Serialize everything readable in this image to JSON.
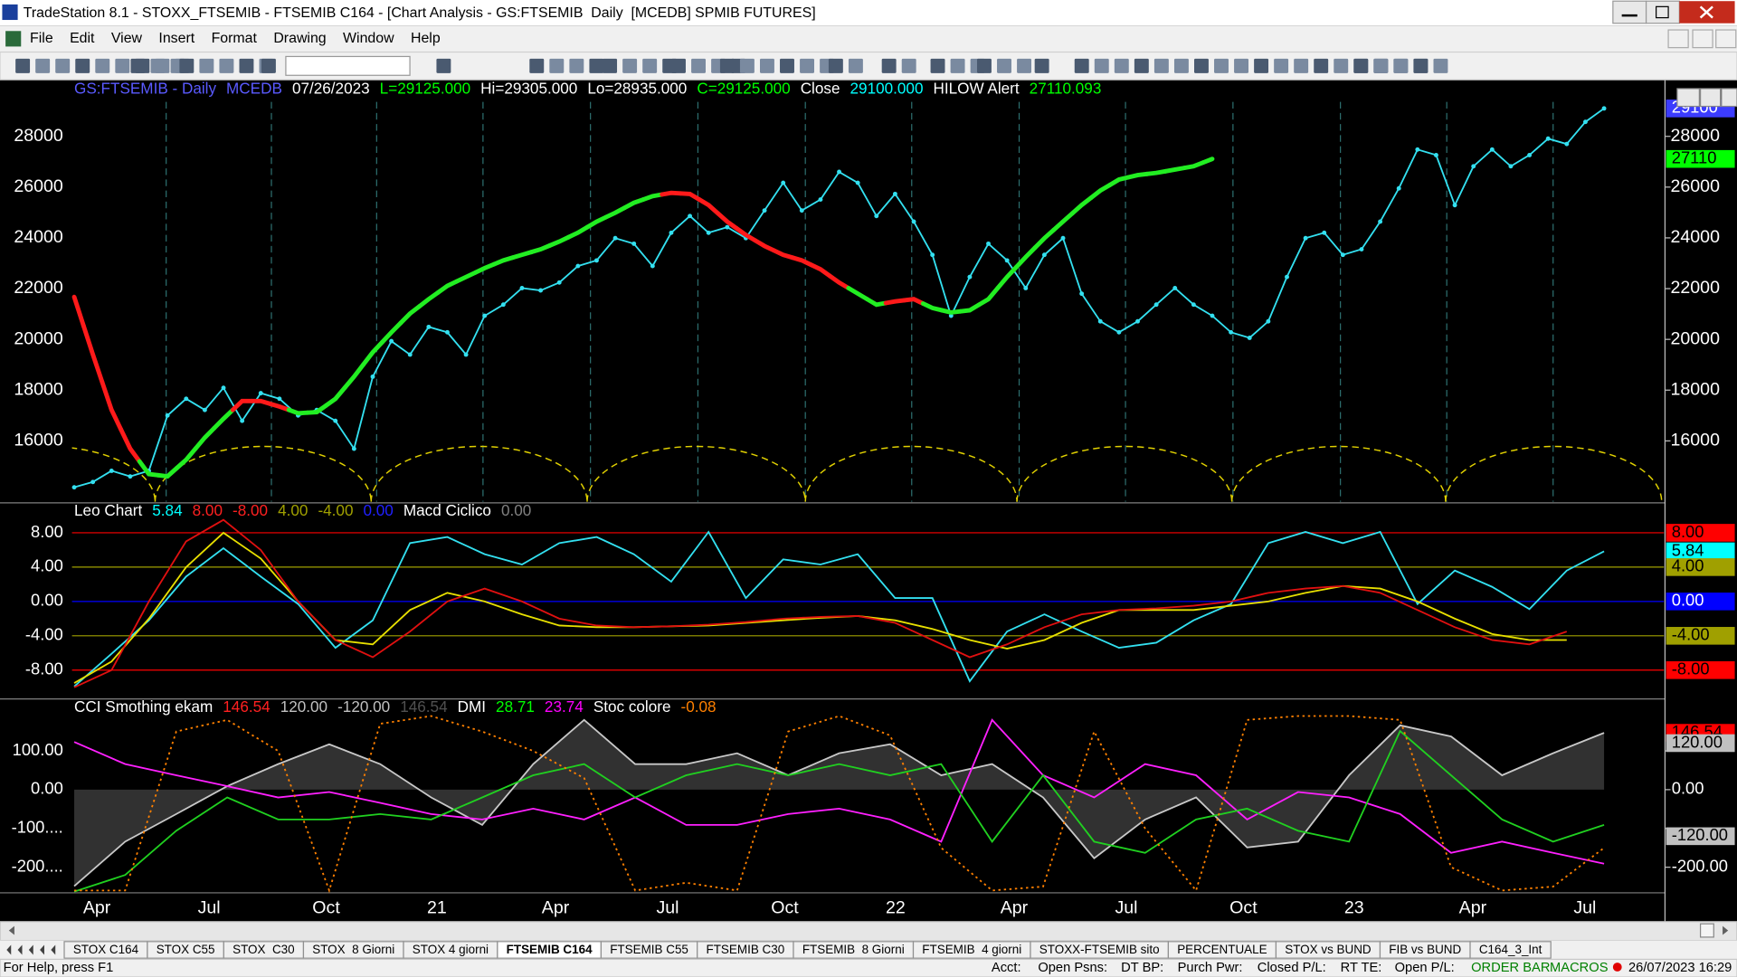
{
  "window": {
    "title": "TradeStation 8.1 - STOXX_FTSEMIB - FTSEMIB C164 - [Chart Analysis - GS:FTSEMIB  Daily  [MCEDB] SPMIB FUTURES]",
    "menu": [
      "File",
      "Edit",
      "View",
      "Insert",
      "Format",
      "Drawing",
      "Window",
      "Help"
    ],
    "tabs": [
      "STOX C164",
      "STOX C55",
      "STOX  C30",
      "STOX  8 Giorni",
      "STOX 4 giorni",
      "FTSEMIB C164",
      "FTSEMIB C55",
      "FTSEMIB C30",
      "FTSEMIB  8 Giorni",
      "FTSEMIB  4 giorni",
      "STOXX-FTSEMIB sito",
      "PERCENTUALE",
      "STOX vs BUND",
      "FIB vs BUND",
      "C164_3_Int"
    ],
    "active_tab": 5,
    "status_help": "For Help, press F1",
    "status_fields": [
      "Acct:",
      "Open Psns:",
      "DT BP:",
      "Purch Pwr:",
      "Closed P/L:",
      "RT TE:",
      "Open P/L:"
    ],
    "status_flags": [
      "ORDER BAR",
      "MACROS"
    ],
    "clock": "26/07/2023 16:29"
  },
  "x_axis_labels": [
    "Apr",
    null,
    null,
    "Jul",
    null,
    null,
    "Oct",
    null,
    null,
    "21",
    null,
    null,
    "Apr",
    null,
    null,
    "Jul",
    null,
    null,
    "Oct",
    null,
    null,
    "22",
    null,
    null,
    "Apr",
    null,
    null,
    "Jul",
    null,
    null,
    "Oct",
    null,
    null,
    "23",
    null,
    null,
    "Apr",
    null,
    null,
    "Jul"
  ],
  "chart_data": [
    {
      "type": "line",
      "header": [
        {
          "text": "GS:FTSEMIB - Daily",
          "color": "#5a5aff"
        },
        {
          "text": "MCEDB",
          "color": "#5a5aff"
        },
        {
          "text": "07/26/2023",
          "color": "#ffffff"
        },
        {
          "text": "L=29125.000",
          "color": "#00ff00"
        },
        {
          "text": "Hi=29305.000",
          "color": "#ffffff"
        },
        {
          "text": "Lo=28935.000",
          "color": "#ffffff"
        },
        {
          "text": "C=29125.000",
          "color": "#00ff00"
        },
        {
          "text": "Close",
          "color": "#ffffff"
        },
        {
          "text": "29100.000",
          "color": "#00ffff"
        },
        {
          "text": "HILOW Alert",
          "color": "#ffffff"
        },
        {
          "text": "27110.093",
          "color": "#00ff00"
        }
      ],
      "ylim": [
        13600,
        30230
      ],
      "yticks": [
        16000,
        18000,
        20000,
        22000,
        24000,
        26000,
        28000
      ],
      "series": [
        {
          "color": "#33e0f0",
          "markers": true,
          "values": [
            14170,
            14380,
            14820,
            14600,
            14820,
            17000,
            17660,
            17220,
            18090,
            16790,
            17880,
            17660,
            17000,
            17220,
            16790,
            15690,
            18530,
            19930,
            19400,
            20490,
            20280,
            19400,
            20930,
            21370,
            22020,
            21930,
            22240,
            22890,
            23110,
            23990,
            23770,
            22890,
            24200,
            24860,
            24200,
            24420,
            23990,
            25080,
            26170,
            25080,
            25510,
            26600,
            26170,
            24860,
            25730,
            24640,
            23330,
            20930,
            22460,
            23770,
            23110,
            22020,
            23330,
            23990,
            21800,
            20710,
            20280,
            20710,
            21370,
            22020,
            21370,
            20930,
            20280,
            20060,
            20710,
            22460,
            23990,
            24200,
            23330,
            23550,
            24640,
            25950,
            27480,
            27260,
            25290,
            26820,
            27480,
            26820,
            27260,
            27910,
            27700,
            28570,
            29100
          ]
        },
        {
          "width": 4,
          "values": [
            21672,
            19403,
            17221,
            15694,
            14690,
            14603,
            15257,
            16130,
            16871,
            17570,
            17570,
            17352,
            17090,
            17134,
            17657,
            18530,
            19490,
            20276,
            21018,
            21585,
            22109,
            22458,
            22807,
            23112,
            23331,
            23549,
            23854,
            24203,
            24640,
            24989,
            25382,
            25643,
            25774,
            25731,
            25294,
            24640,
            24116,
            23680,
            23331,
            23112,
            22763,
            22240,
            21803,
            21367,
            21497,
            21585,
            21236,
            21061,
            21148,
            21585,
            22458,
            23243,
            23985,
            24640,
            25294,
            25862,
            26298,
            26473,
            26560,
            26691,
            26822,
            27110
          ],
          "colors": [
            "#ff1a1a",
            "#ff1a1a",
            "#ff1a1a",
            "#ff1a1a",
            "#22ee22",
            "#22ee22",
            "#22ee22",
            "#22ee22",
            "#22ee22",
            "#ff1a1a",
            "#ff1a1a",
            "#ff1a1a",
            "#22ee22",
            "#22ee22",
            "#22ee22",
            "#22ee22",
            "#22ee22",
            "#22ee22",
            "#22ee22",
            "#22ee22",
            "#22ee22",
            "#22ee22",
            "#22ee22",
            "#22ee22",
            "#22ee22",
            "#22ee22",
            "#22ee22",
            "#22ee22",
            "#22ee22",
            "#22ee22",
            "#22ee22",
            "#22ee22",
            "#ff1a1a",
            "#ff1a1a",
            "#ff1a1a",
            "#ff1a1a",
            "#ff1a1a",
            "#ff1a1a",
            "#ff1a1a",
            "#ff1a1a",
            "#ff1a1a",
            "#ff1a1a",
            "#22ee22",
            "#22ee22",
            "#ff1a1a",
            "#ff1a1a",
            "#22ee22",
            "#22ee22",
            "#22ee22",
            "#22ee22",
            "#22ee22",
            "#22ee22",
            "#22ee22",
            "#22ee22",
            "#22ee22",
            "#22ee22",
            "#22ee22",
            "#22ee22",
            "#22ee22",
            "#22ee22",
            "#22ee22",
            "#22ee22"
          ]
        }
      ],
      "tags": [
        {
          "value": 29100,
          "color": "#3c3cff",
          "text_color": "#ffffff"
        },
        {
          "value": 27110,
          "color": "#00ff00",
          "text_color": "#000000"
        }
      ]
    },
    {
      "type": "line",
      "header": [
        {
          "text": "Leo Chart",
          "color": "#ffffff"
        },
        {
          "text": "5.84",
          "color": "#00ffff"
        },
        {
          "text": "8.00",
          "color": "#ff2020"
        },
        {
          "text": "-8.00",
          "color": "#ff2020"
        },
        {
          "text": "4.00",
          "color": "#a0a000"
        },
        {
          "text": "-4.00",
          "color": "#a0a000"
        },
        {
          "text": "0.00",
          "color": "#2020ff"
        },
        {
          "text": "Macd Ciclico",
          "color": "#ffffff"
        },
        {
          "text": "0.00",
          "color": "#808080"
        }
      ],
      "ylim": [
        -11.23,
        11.35
      ],
      "yticks": [
        {
          "value": 8,
          "label": "8.00"
        },
        {
          "value": 4,
          "label": "4.00"
        },
        {
          "value": 0,
          "label": "0.00"
        },
        {
          "value": -4,
          "label": "-4.00"
        },
        {
          "value": -8,
          "label": "-8.00"
        }
      ],
      "tick_colors": [
        "#ff0000",
        "#a0a000",
        "#0000ff",
        "#a0a000",
        "#ff0000"
      ],
      "series": [
        {
          "color": "#33e0f0",
          "values": [
            -9.9,
            -6.1,
            -2.2,
            2.9,
            6.2,
            2.9,
            -0.3,
            -5.4,
            -2.2,
            6.8,
            7.5,
            5.5,
            4.3,
            6.8,
            7.5,
            5.5,
            2.3,
            8.1,
            0.4,
            4.9,
            4.3,
            5.5,
            0.4,
            0.4,
            -9.3,
            -3.5,
            -1.5,
            -3.5,
            -5.4,
            -4.8,
            -2.2,
            -0.3,
            6.8,
            8.1,
            6.8,
            8.1,
            -0.3,
            3.6,
            1.7,
            -0.9,
            3.6,
            5.84
          ]
        },
        {
          "color": "#e8e000",
          "values": [
            -9.5,
            -7,
            -2,
            4,
            8,
            5,
            0,
            -4.5,
            -5,
            -1,
            1,
            0,
            -1.5,
            -2.8,
            -3,
            -3,
            -2.9,
            -2.8,
            -2.5,
            -2.2,
            -1.9,
            -1.7,
            -2.2,
            -3.2,
            -4.5,
            -5.5,
            -4.5,
            -2.5,
            -1,
            -1,
            -1,
            -0.5,
            0,
            1,
            1.8,
            1.5,
            0,
            -2,
            -3.8,
            -4.5,
            -4.5,
            null
          ]
        },
        {
          "color": "#e01010",
          "values": [
            -10,
            -8,
            0,
            7,
            9.5,
            6,
            0,
            -4.5,
            -6.5,
            -3.5,
            0,
            1.5,
            0,
            -2,
            -2.8,
            -3,
            -2.9,
            -2.7,
            -2.4,
            -2,
            -1.8,
            -1.7,
            -2.5,
            -4.5,
            -6.5,
            -5,
            -3,
            -1.5,
            -1,
            -0.8,
            -0.5,
            0,
            1,
            1.5,
            1.8,
            1,
            -1,
            -3,
            -4.5,
            -5,
            -3.5,
            null
          ]
        }
      ],
      "tags": [
        {
          "value": 8,
          "label": "8.00",
          "color": "#ff0000",
          "text_color": "#000000"
        },
        {
          "value": 5.84,
          "label": "5.84",
          "color": "#00ffff",
          "text_color": "#000000"
        },
        {
          "value": 4,
          "label": "4.00",
          "color": "#a0a000",
          "text_color": "#000000"
        },
        {
          "value": 0,
          "label": "0.00",
          "color": "#0000ff",
          "text_color": "#ffffff"
        },
        {
          "value": -4,
          "label": "-4.00",
          "color": "#a0a000",
          "text_color": "#000000"
        },
        {
          "value": -8,
          "label": "-8.00",
          "color": "#ff0000",
          "text_color": "#000000"
        }
      ]
    },
    {
      "type": "line",
      "header": [
        {
          "text": "CCI Smothing ekam",
          "color": "#ffffff"
        },
        {
          "text": "146.54",
          "color": "#ff2020"
        },
        {
          "text": "120.00",
          "color": "#c0c0c0"
        },
        {
          "text": "-120.00",
          "color": "#c0c0c0"
        },
        {
          "text": "146.54",
          "color": "#505050"
        },
        {
          "text": "DMI",
          "color": "#ffffff"
        },
        {
          "text": "28.71",
          "color": "#00ff00"
        },
        {
          "text": "23.74",
          "color": "#ff00ff"
        },
        {
          "text": "Stoc colore",
          "color": "#ffffff"
        },
        {
          "text": "-0.08",
          "color": "#ff8000"
        }
      ],
      "ylim": [
        -266,
        231
      ],
      "yticks": [
        {
          "value": 100,
          "label": "100.00"
        },
        {
          "value": 0,
          "label": "0.00"
        },
        {
          "value": -100,
          "label": "-100...."
        },
        {
          "value": -200,
          "label": "-200...."
        }
      ],
      "series": [
        {
          "color": "#c8c8c8",
          "area": true,
          "values": [
            -249,
            -134,
            -63,
            9,
            66,
            117,
            66,
            -20,
            -91,
            66,
            180,
            66,
            66,
            94,
            37,
            94,
            117,
            37,
            66,
            -20,
            -177,
            -77,
            -20,
            -149,
            -134,
            37,
            166,
            137,
            37,
            94,
            146.54
          ]
        },
        {
          "color": "#ff20ff",
          "values": [
            123,
            66,
            37,
            9,
            -20,
            -6,
            -34,
            -63,
            -77,
            -49,
            -77,
            -20,
            -91,
            -91,
            -63,
            -49,
            -77,
            -134,
            180,
            37,
            -20,
            66,
            37,
            -77,
            -6,
            -20,
            -63,
            -163,
            -134,
            -163,
            -191
          ]
        },
        {
          "color": "#20d020",
          "values": [
            -263,
            -220,
            -106,
            -20,
            -77,
            -77,
            -63,
            -77,
            -20,
            37,
            66,
            -20,
            37,
            66,
            37,
            66,
            37,
            66,
            -134,
            37,
            -134,
            -163,
            -77,
            -49,
            -106,
            -134,
            151,
            37,
            -77,
            -134,
            -91
          ]
        },
        {
          "color": "#ff8000",
          "dashed": true,
          "values": [
            -260,
            -260,
            150,
            180,
            100,
            -260,
            170,
            190,
            150,
            100,
            30,
            -260,
            -240,
            -260,
            150,
            190,
            140,
            -150,
            -260,
            -250,
            150,
            -100,
            -260,
            180,
            190,
            190,
            180,
            -200,
            -260,
            -250,
            -150
          ]
        }
      ],
      "tags": [
        {
          "value": 146.54,
          "label": "146.54",
          "color": "#ff0000",
          "text_color": "#000000"
        },
        {
          "value": 120,
          "label": "120.00",
          "color": "#c0c0c0",
          "text_color": "#000000"
        },
        {
          "value": 0,
          "label": "0.00",
          "color": null,
          "text_color": "#ffffff"
        },
        {
          "value": -120,
          "label": "-120.00",
          "color": "#c0c0c0",
          "text_color": "#000000"
        },
        {
          "value": -200,
          "label": "-200.00",
          "color": null,
          "text_color": "#ffffff"
        }
      ]
    }
  ]
}
